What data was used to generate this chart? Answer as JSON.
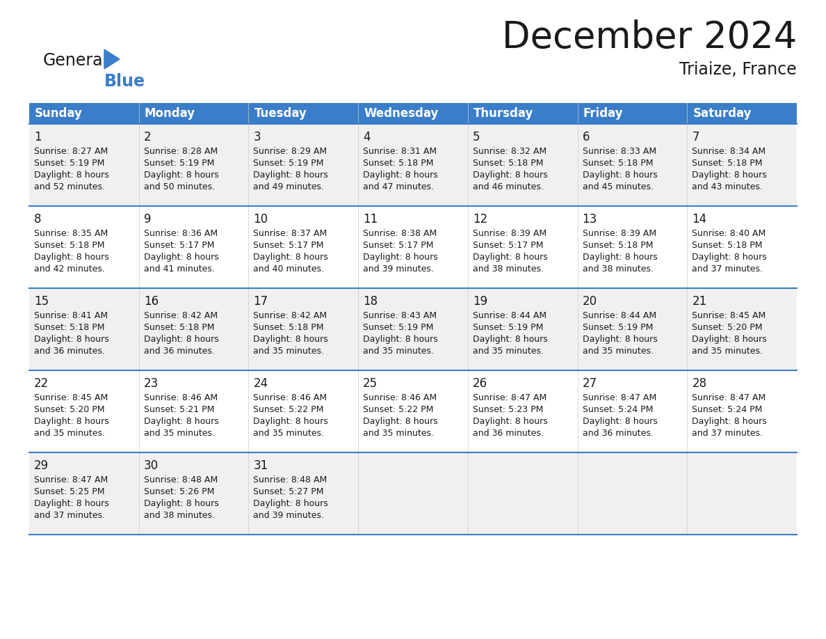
{
  "title": "December 2024",
  "subtitle": "Triaize, France",
  "header_color": "#3A7DC9",
  "header_text_color": "#FFFFFF",
  "row_bg_colors": [
    "#F0F0F0",
    "#FFFFFF"
  ],
  "day_headers": [
    "Sunday",
    "Monday",
    "Tuesday",
    "Wednesday",
    "Thursday",
    "Friday",
    "Saturday"
  ],
  "calendar_data": [
    [
      {
        "day": "1",
        "sunrise": "8:27 AM",
        "sunset": "5:19 PM",
        "dl1": "Daylight: 8 hours",
        "dl2": "and 52 minutes."
      },
      {
        "day": "2",
        "sunrise": "8:28 AM",
        "sunset": "5:19 PM",
        "dl1": "Daylight: 8 hours",
        "dl2": "and 50 minutes."
      },
      {
        "day": "3",
        "sunrise": "8:29 AM",
        "sunset": "5:19 PM",
        "dl1": "Daylight: 8 hours",
        "dl2": "and 49 minutes."
      },
      {
        "day": "4",
        "sunrise": "8:31 AM",
        "sunset": "5:18 PM",
        "dl1": "Daylight: 8 hours",
        "dl2": "and 47 minutes."
      },
      {
        "day": "5",
        "sunrise": "8:32 AM",
        "sunset": "5:18 PM",
        "dl1": "Daylight: 8 hours",
        "dl2": "and 46 minutes."
      },
      {
        "day": "6",
        "sunrise": "8:33 AM",
        "sunset": "5:18 PM",
        "dl1": "Daylight: 8 hours",
        "dl2": "and 45 minutes."
      },
      {
        "day": "7",
        "sunrise": "8:34 AM",
        "sunset": "5:18 PM",
        "dl1": "Daylight: 8 hours",
        "dl2": "and 43 minutes."
      }
    ],
    [
      {
        "day": "8",
        "sunrise": "8:35 AM",
        "sunset": "5:18 PM",
        "dl1": "Daylight: 8 hours",
        "dl2": "and 42 minutes."
      },
      {
        "day": "9",
        "sunrise": "8:36 AM",
        "sunset": "5:17 PM",
        "dl1": "Daylight: 8 hours",
        "dl2": "and 41 minutes."
      },
      {
        "day": "10",
        "sunrise": "8:37 AM",
        "sunset": "5:17 PM",
        "dl1": "Daylight: 8 hours",
        "dl2": "and 40 minutes."
      },
      {
        "day": "11",
        "sunrise": "8:38 AM",
        "sunset": "5:17 PM",
        "dl1": "Daylight: 8 hours",
        "dl2": "and 39 minutes."
      },
      {
        "day": "12",
        "sunrise": "8:39 AM",
        "sunset": "5:17 PM",
        "dl1": "Daylight: 8 hours",
        "dl2": "and 38 minutes."
      },
      {
        "day": "13",
        "sunrise": "8:39 AM",
        "sunset": "5:18 PM",
        "dl1": "Daylight: 8 hours",
        "dl2": "and 38 minutes."
      },
      {
        "day": "14",
        "sunrise": "8:40 AM",
        "sunset": "5:18 PM",
        "dl1": "Daylight: 8 hours",
        "dl2": "and 37 minutes."
      }
    ],
    [
      {
        "day": "15",
        "sunrise": "8:41 AM",
        "sunset": "5:18 PM",
        "dl1": "Daylight: 8 hours",
        "dl2": "and 36 minutes."
      },
      {
        "day": "16",
        "sunrise": "8:42 AM",
        "sunset": "5:18 PM",
        "dl1": "Daylight: 8 hours",
        "dl2": "and 36 minutes."
      },
      {
        "day": "17",
        "sunrise": "8:42 AM",
        "sunset": "5:18 PM",
        "dl1": "Daylight: 8 hours",
        "dl2": "and 35 minutes."
      },
      {
        "day": "18",
        "sunrise": "8:43 AM",
        "sunset": "5:19 PM",
        "dl1": "Daylight: 8 hours",
        "dl2": "and 35 minutes."
      },
      {
        "day": "19",
        "sunrise": "8:44 AM",
        "sunset": "5:19 PM",
        "dl1": "Daylight: 8 hours",
        "dl2": "and 35 minutes."
      },
      {
        "day": "20",
        "sunrise": "8:44 AM",
        "sunset": "5:19 PM",
        "dl1": "Daylight: 8 hours",
        "dl2": "and 35 minutes."
      },
      {
        "day": "21",
        "sunrise": "8:45 AM",
        "sunset": "5:20 PM",
        "dl1": "Daylight: 8 hours",
        "dl2": "and 35 minutes."
      }
    ],
    [
      {
        "day": "22",
        "sunrise": "8:45 AM",
        "sunset": "5:20 PM",
        "dl1": "Daylight: 8 hours",
        "dl2": "and 35 minutes."
      },
      {
        "day": "23",
        "sunrise": "8:46 AM",
        "sunset": "5:21 PM",
        "dl1": "Daylight: 8 hours",
        "dl2": "and 35 minutes."
      },
      {
        "day": "24",
        "sunrise": "8:46 AM",
        "sunset": "5:22 PM",
        "dl1": "Daylight: 8 hours",
        "dl2": "and 35 minutes."
      },
      {
        "day": "25",
        "sunrise": "8:46 AM",
        "sunset": "5:22 PM",
        "dl1": "Daylight: 8 hours",
        "dl2": "and 35 minutes."
      },
      {
        "day": "26",
        "sunrise": "8:47 AM",
        "sunset": "5:23 PM",
        "dl1": "Daylight: 8 hours",
        "dl2": "and 36 minutes."
      },
      {
        "day": "27",
        "sunrise": "8:47 AM",
        "sunset": "5:24 PM",
        "dl1": "Daylight: 8 hours",
        "dl2": "and 36 minutes."
      },
      {
        "day": "28",
        "sunrise": "8:47 AM",
        "sunset": "5:24 PM",
        "dl1": "Daylight: 8 hours",
        "dl2": "and 37 minutes."
      }
    ],
    [
      {
        "day": "29",
        "sunrise": "8:47 AM",
        "sunset": "5:25 PM",
        "dl1": "Daylight: 8 hours",
        "dl2": "and 37 minutes."
      },
      {
        "day": "30",
        "sunrise": "8:48 AM",
        "sunset": "5:26 PM",
        "dl1": "Daylight: 8 hours",
        "dl2": "and 38 minutes."
      },
      {
        "day": "31",
        "sunrise": "8:48 AM",
        "sunset": "5:27 PM",
        "dl1": "Daylight: 8 hours",
        "dl2": "and 39 minutes."
      },
      null,
      null,
      null,
      null
    ]
  ],
  "divider_color": "#3A7DC9",
  "cell_line_color": "#999999",
  "title_fontsize": 38,
  "subtitle_fontsize": 17,
  "header_fontsize": 12,
  "day_num_fontsize": 12,
  "cell_text_fontsize": 9
}
